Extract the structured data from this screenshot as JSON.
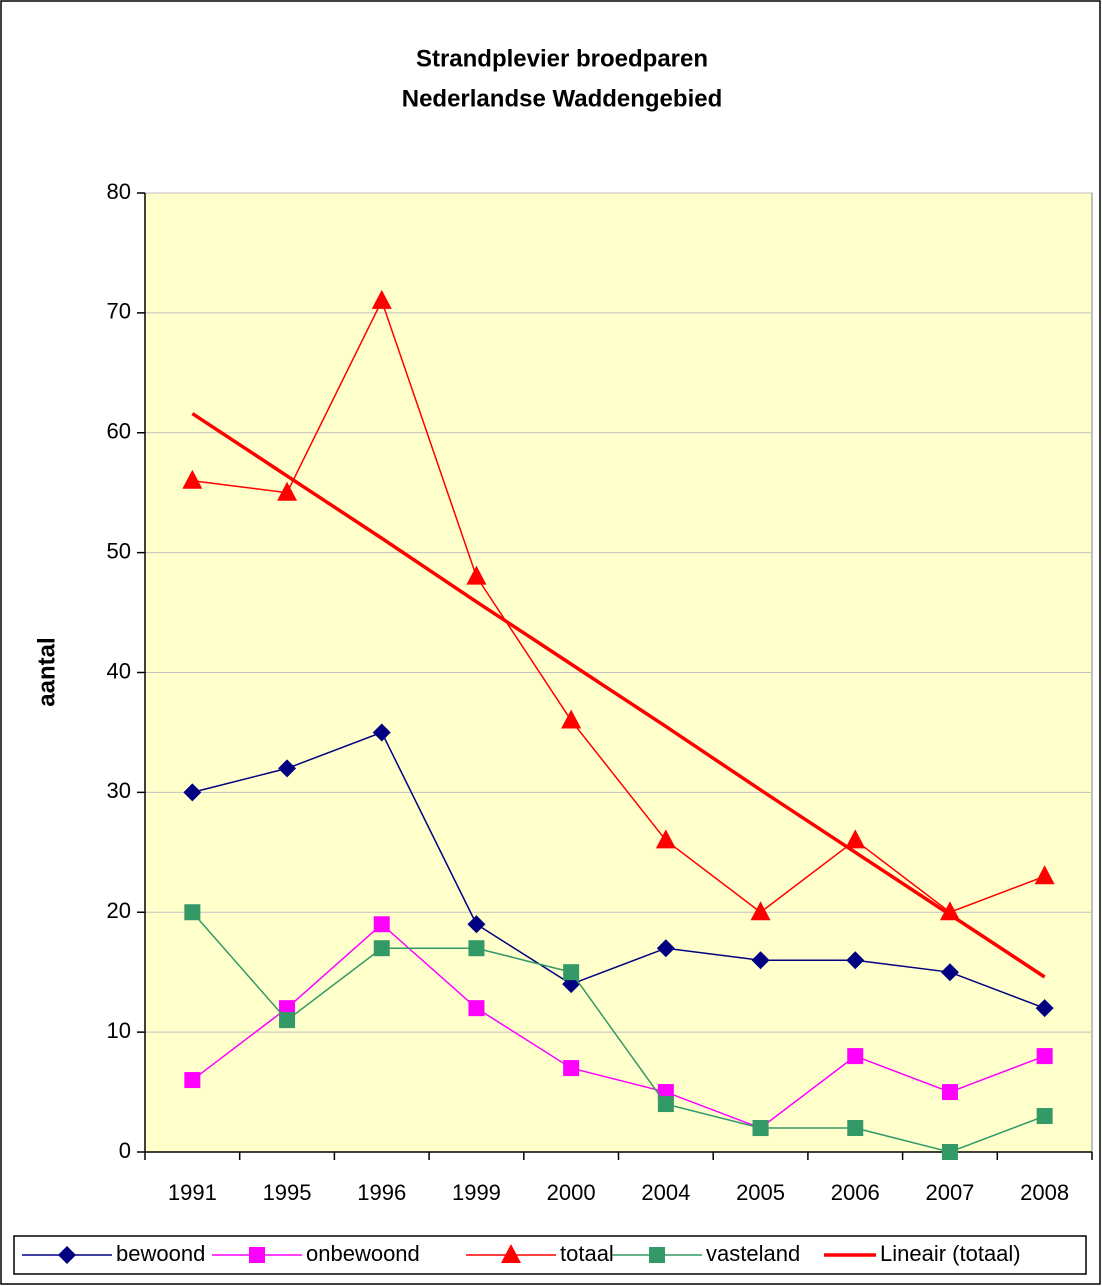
{
  "chart_data": {
    "type": "line",
    "title": [
      "Strandplevier broedparen",
      "Nederlandse Waddengebied"
    ],
    "y_label": "aantal",
    "categories": [
      "1991",
      "1995",
      "1996",
      "1999",
      "2000",
      "2004",
      "2005",
      "2006",
      "2007",
      "2008"
    ],
    "series": [
      {
        "name": "bewoond",
        "color": "#000080",
        "marker": "diamond",
        "values": [
          30,
          32,
          35,
          19,
          14,
          17,
          16,
          16,
          15,
          12
        ]
      },
      {
        "name": "onbewoond",
        "color": "#ff00ff",
        "marker": "square",
        "values": [
          6,
          12,
          19,
          12,
          7,
          5,
          2,
          8,
          5,
          8
        ]
      },
      {
        "name": "totaal",
        "color": "#ff0000",
        "marker": "triangle",
        "values": [
          56,
          55,
          71,
          48,
          36,
          26,
          20,
          26,
          20,
          23
        ]
      },
      {
        "name": "vasteland",
        "color": "#339966",
        "marker": "square",
        "values": [
          20,
          11,
          17,
          17,
          15,
          4,
          2,
          2,
          0,
          3
        ]
      },
      {
        "name": "Lineair (totaal)",
        "color": "#ff0000",
        "marker": "none",
        "values": [
          61.6,
          56.4,
          51.2,
          45.9,
          40.7,
          35.5,
          30.2,
          25.0,
          19.8,
          14.6
        ]
      }
    ],
    "ylim": [
      0,
      80
    ],
    "yticks": [
      0,
      10,
      20,
      30,
      40,
      50,
      60,
      70,
      80
    ],
    "grid": true,
    "legend": "bottom",
    "plot_background": "#ffffcc"
  }
}
